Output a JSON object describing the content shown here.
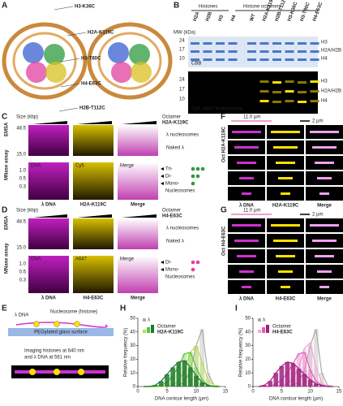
{
  "panels": {
    "A": {
      "label": "A",
      "annotations": [
        "H3-K36C",
        "H2A-K119C",
        "H3-T80C",
        "H4-E63C",
        "H2B-T112C"
      ]
    },
    "B": {
      "label": "B",
      "mw_label": "MW (kDa)",
      "mw_ticks": [
        "24",
        "17",
        "10"
      ],
      "groups": [
        "Histones",
        "Histone octamers"
      ],
      "lanes": [
        "H2A",
        "H2B",
        "H3",
        "H4",
        "WT",
        "H2A-K119C",
        "H2B-T112C",
        "H3-K36C",
        "H3-T80C",
        "H4-E63C"
      ],
      "bands": [
        "H3",
        "H2A/H2B",
        "H4"
      ],
      "stain1": "CBB",
      "stain2": "Cy5, A647 fluorescence"
    },
    "C": {
      "label": "C",
      "size_label": "Size (kbp)",
      "emsa": "EMSA",
      "mnase": "MNase assay",
      "emsa_ticks": [
        "48.5",
        "15.0"
      ],
      "mnase_ticks": [
        "1.0",
        "0.5",
        "0.3"
      ],
      "columns": [
        "DNA",
        "Cy5",
        "Merge"
      ],
      "octamer": "Octamer",
      "histone": "H2A-K119C",
      "emsa_bands": [
        "λ nucleosomes",
        "Naked λ"
      ],
      "mnase_bands": [
        "Tri-",
        "Di-",
        "Mono-"
      ],
      "nucleosomes": "Nucleosomes",
      "bottom": [
        "λ DNA",
        "H2A-K119C",
        "Merge"
      ]
    },
    "D": {
      "label": "D",
      "size_label": "Size (kbp)",
      "emsa": "EMSA",
      "mnase": "MNase assay",
      "emsa_ticks": [
        "48.5",
        "15.0"
      ],
      "mnase_ticks": [
        "1.0",
        "0.5",
        "0.3"
      ],
      "columns": [
        "DNA",
        "A647",
        "Merge"
      ],
      "octamer": "Octamer",
      "histone": "H4-E63C",
      "emsa_bands": [
        "λ nucleosomes",
        "Naked λ"
      ],
      "mnase_bands": [
        "Di-",
        "Mono-"
      ],
      "nucleosomes": "Nucleosomes",
      "bottom": [
        "λ DNA",
        "H4-E63C",
        "Merge"
      ]
    },
    "E": {
      "label": "E",
      "dna": "λ DNA",
      "nucleosome": "Nucleosome (histone)",
      "surface": "PEGylated glass surface",
      "imaging1": "Imaging histones at 640 nm",
      "imaging2": "and λ DNA at 561 nm"
    },
    "F": {
      "label": "F",
      "length": "11.0 µm",
      "scale": "2 µm",
      "side": "Oct H2A-K119C",
      "bottom": [
        "λ DNA",
        "H2A-K119C",
        "Merge"
      ]
    },
    "G": {
      "label": "G",
      "length": "11.0 µm",
      "scale": "2 µm",
      "side": "Oct H4-E63C",
      "bottom": [
        "λ DNA",
        "H4-E63C",
        "Merge"
      ]
    },
    "H": {
      "label": "H",
      "xlabel": "DNA contour length (µm)",
      "ylabel": "Relative frequency (%)",
      "xlim": [
        0,
        15
      ],
      "ylim": [
        0,
        50
      ],
      "xticks": [
        0,
        5,
        10,
        15
      ],
      "yticks": [
        0,
        10,
        20,
        30,
        40,
        50
      ],
      "x": [
        1,
        2,
        3,
        4,
        5,
        6,
        7,
        8,
        9,
        10,
        11,
        12,
        13,
        14
      ],
      "legend": [
        "λ",
        "Octamer",
        "H2A-K119C"
      ],
      "series": [
        {
          "color": "#aaaaaa",
          "values": [
            0,
            0,
            0,
            0,
            0,
            0,
            1,
            3,
            12,
            30,
            42,
            10,
            1,
            0
          ]
        },
        {
          "color": "#b8e04a",
          "values": [
            0,
            0,
            0,
            0,
            0,
            1,
            4,
            12,
            25,
            30,
            18,
            5,
            1,
            0
          ]
        },
        {
          "color": "#5cc23a",
          "values": [
            0,
            0,
            0,
            1,
            3,
            8,
            15,
            24,
            25,
            14,
            5,
            1,
            0,
            0
          ]
        },
        {
          "color": "#1e7a2a",
          "values": [
            0,
            0,
            1,
            4,
            9,
            14,
            18,
            19,
            14,
            8,
            3,
            1,
            0,
            0
          ]
        }
      ]
    },
    "I": {
      "label": "I",
      "xlabel": "DNA contour length (µm)",
      "ylabel": "Relative frequency (%)",
      "xlim": [
        0,
        15
      ],
      "ylim": [
        0,
        50
      ],
      "xticks": [
        0,
        5,
        10,
        15
      ],
      "yticks": [
        0,
        10,
        20,
        30,
        40,
        50
      ],
      "x": [
        1,
        2,
        3,
        4,
        5,
        6,
        7,
        8,
        9,
        10,
        11,
        12,
        13,
        14
      ],
      "legend": [
        "λ",
        "Octamer",
        "H4-E63C"
      ],
      "series": [
        {
          "color": "#aaaaaa",
          "values": [
            0,
            0,
            0,
            0,
            0,
            0,
            1,
            3,
            12,
            30,
            42,
            10,
            1,
            0
          ]
        },
        {
          "color": "#f4a6d7",
          "values": [
            0,
            0,
            0,
            0,
            1,
            2,
            6,
            14,
            28,
            32,
            14,
            3,
            0,
            0
          ]
        },
        {
          "color": "#e35cb8",
          "values": [
            0,
            0,
            0,
            2,
            5,
            10,
            17,
            24,
            25,
            12,
            4,
            1,
            0,
            0
          ]
        },
        {
          "color": "#a0207e",
          "values": [
            0,
            1,
            4,
            10,
            15,
            18,
            17,
            13,
            9,
            5,
            2,
            1,
            0,
            0
          ]
        }
      ]
    }
  }
}
